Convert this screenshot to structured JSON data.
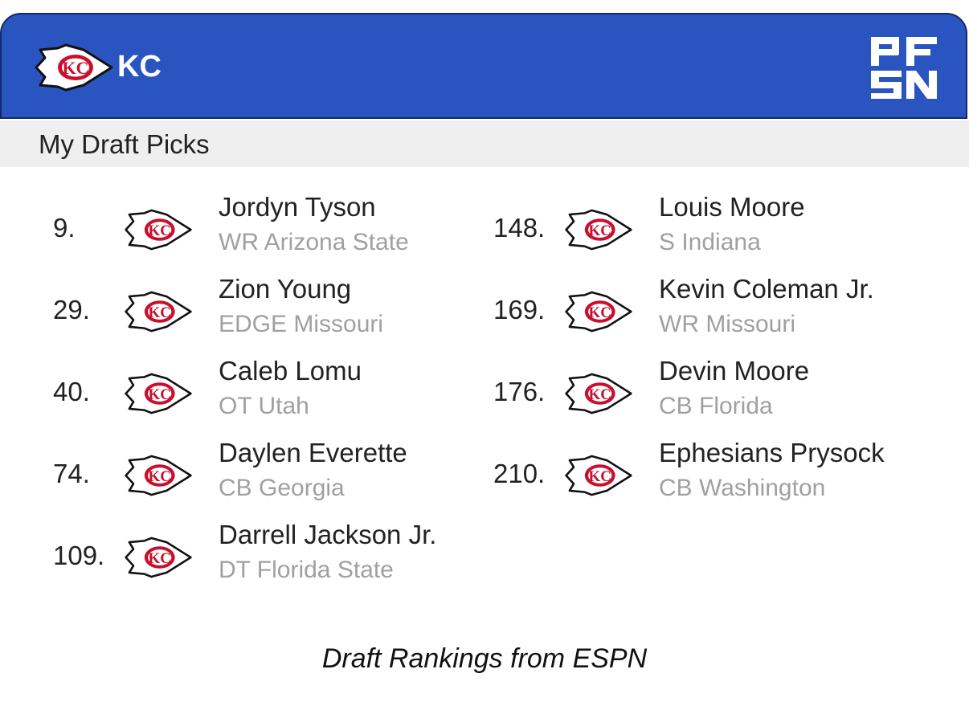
{
  "header": {
    "team_abbr": "KC",
    "team_logo_icon": "chiefs-arrowhead-icon",
    "brand_logo_icon": "pfsn-logo-icon",
    "colors": {
      "header_bg": "#2a54bf",
      "logo_red": "#c8102e"
    }
  },
  "section": {
    "title": "My Draft Picks"
  },
  "picks": [
    {
      "number": "9.",
      "name": "Jordyn Tyson",
      "position_school": "WR Arizona State"
    },
    {
      "number": "29.",
      "name": "Zion Young",
      "position_school": "EDGE Missouri"
    },
    {
      "number": "40.",
      "name": "Caleb Lomu",
      "position_school": "OT Utah"
    },
    {
      "number": "74.",
      "name": "Daylen Everette",
      "position_school": "CB Georgia"
    },
    {
      "number": "109.",
      "name": "Darrell Jackson Jr.",
      "position_school": "DT Florida State"
    },
    {
      "number": "148.",
      "name": "Louis Moore",
      "position_school": "S Indiana"
    },
    {
      "number": "169.",
      "name": "Kevin Coleman Jr.",
      "position_school": "WR Missouri"
    },
    {
      "number": "176.",
      "name": "Devin Moore",
      "position_school": "CB Florida"
    },
    {
      "number": "210.",
      "name": "Ephesians Prysock",
      "position_school": "CB Washington"
    }
  ],
  "footer": {
    "text": "Draft Rankings from ESPN"
  }
}
